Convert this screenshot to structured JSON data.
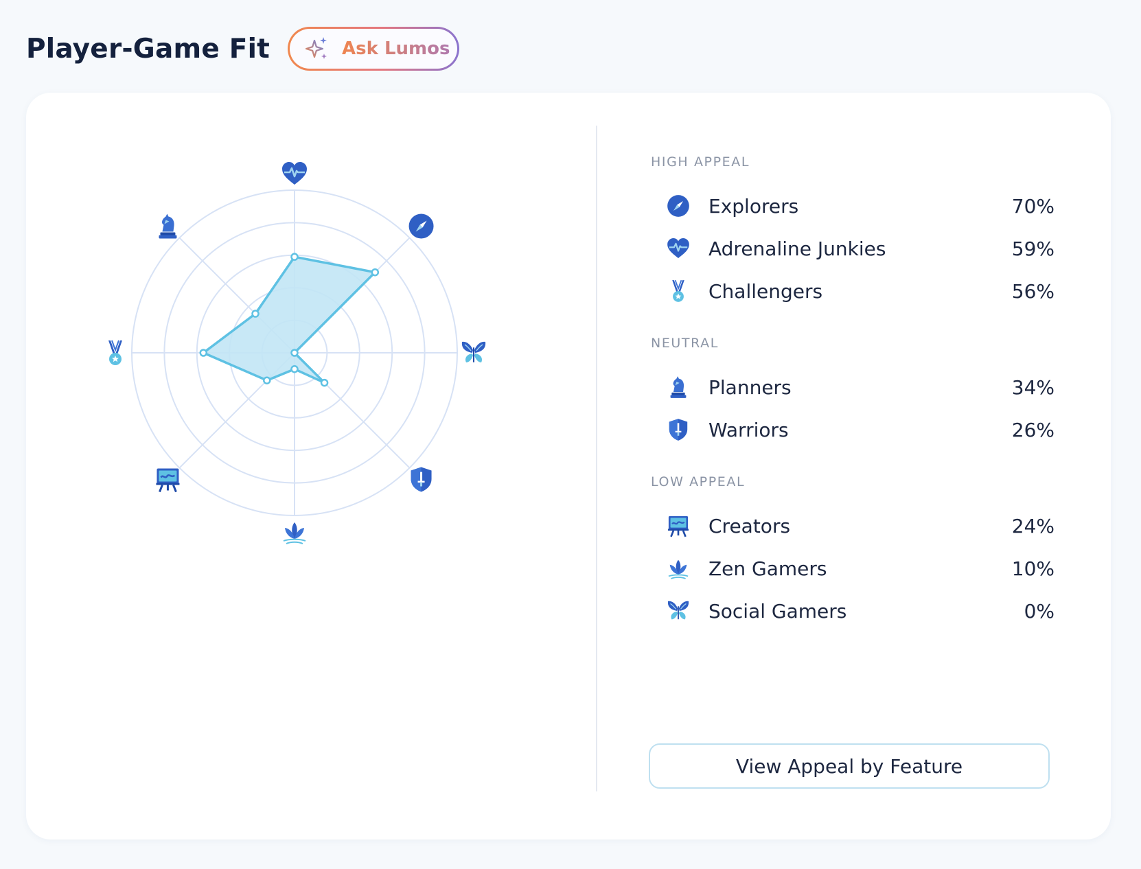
{
  "header": {
    "title": "Player-Game Fit",
    "ask_label": "Ask Lumos"
  },
  "colors": {
    "accent_blue": "#2f5fc4",
    "radar_fill": "#c2e5f5",
    "radar_stroke": "#5ec1e3",
    "grid": "#d7e2f5",
    "ask_gradient": [
      "#f0884e",
      "#8a74cf"
    ]
  },
  "chart_data": {
    "type": "radar",
    "axes": [
      {
        "name": "Adrenaline Junkies",
        "icon": "heart-pulse-icon",
        "value": 59
      },
      {
        "name": "Explorers",
        "icon": "compass-icon",
        "value": 70
      },
      {
        "name": "Social Gamers",
        "icon": "butterfly-icon",
        "value": 0
      },
      {
        "name": "Warriors",
        "icon": "shield-sword-icon",
        "value": 26
      },
      {
        "name": "Zen Gamers",
        "icon": "lotus-icon",
        "value": 10
      },
      {
        "name": "Creators",
        "icon": "easel-icon",
        "value": 24
      },
      {
        "name": "Challengers",
        "icon": "medal-icon",
        "value": 56
      },
      {
        "name": "Planners",
        "icon": "chess-knight-icon",
        "value": 34
      }
    ],
    "range": [
      0,
      100
    ],
    "rings": 5
  },
  "legend": {
    "groups": [
      {
        "title": "HIGH APPEAL",
        "items": [
          {
            "label": "Explorers",
            "value": "70%",
            "icon": "compass-icon"
          },
          {
            "label": "Adrenaline Junkies",
            "value": "59%",
            "icon": "heart-pulse-icon"
          },
          {
            "label": "Challengers",
            "value": "56%",
            "icon": "medal-icon"
          }
        ]
      },
      {
        "title": "NEUTRAL",
        "items": [
          {
            "label": "Planners",
            "value": "34%",
            "icon": "chess-knight-icon"
          },
          {
            "label": "Warriors",
            "value": "26%",
            "icon": "shield-sword-icon"
          }
        ]
      },
      {
        "title": "LOW APPEAL",
        "items": [
          {
            "label": "Creators",
            "value": "24%",
            "icon": "easel-icon"
          },
          {
            "label": "Zen Gamers",
            "value": "10%",
            "icon": "lotus-icon"
          },
          {
            "label": "Social Gamers",
            "value": "0%",
            "icon": "butterfly-icon"
          }
        ]
      }
    ]
  },
  "footer": {
    "view_button_label": "View Appeal by Feature"
  }
}
